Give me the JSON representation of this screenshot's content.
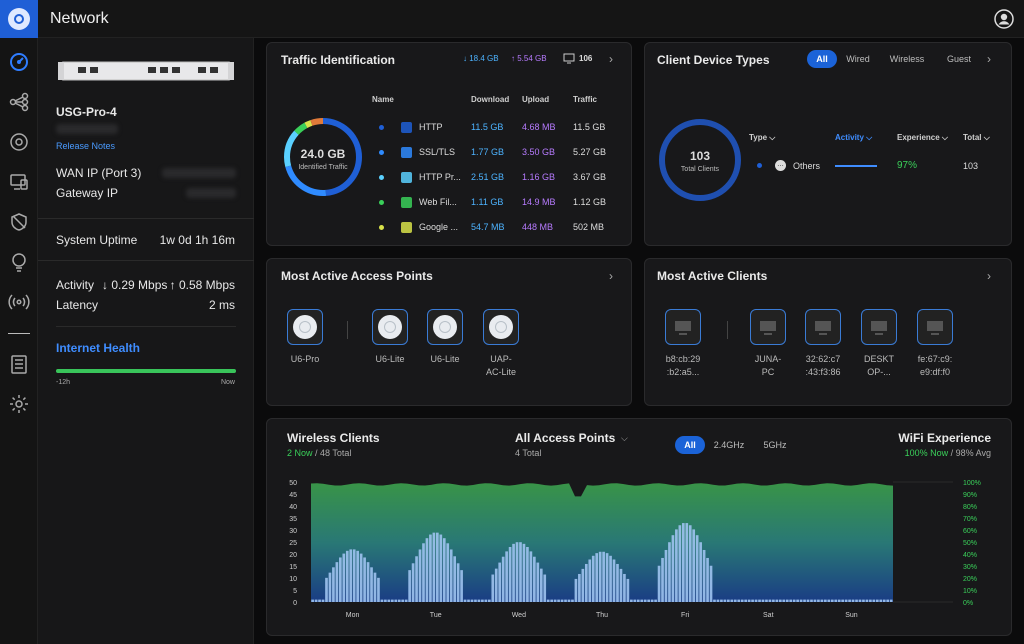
{
  "header": {
    "title": "Network"
  },
  "sidebar_nav": [
    "dashboard",
    "topology",
    "clients-devices",
    "devices",
    "security",
    "insights",
    "radios",
    "logs",
    "settings"
  ],
  "device": {
    "name": "USG-Pro-4",
    "release_notes": "Release Notes",
    "wan_label": "WAN IP (Port 3)",
    "gateway_label": "Gateway IP",
    "uptime_label": "System Uptime",
    "uptime_value": "1w 0d 1h 16m",
    "activity_label": "Activity",
    "activity_down": "↓ 0.29 Mbps",
    "activity_up": "↑ 0.58 Mbps",
    "latency_label": "Latency",
    "latency_value": "2 ms",
    "health_title": "Internet Health",
    "health_start": "-12h",
    "health_end": "Now",
    "health_fraction": 1.0
  },
  "traffic": {
    "title": "Traffic Identification",
    "down": "18.4 GB",
    "up": "5.54 GB",
    "count": "106",
    "donut_value": "24.0 GB",
    "donut_label": "Identified Traffic",
    "headers": [
      "Name",
      "Download",
      "Upload",
      "Traffic"
    ],
    "rows": [
      {
        "name": "HTTP",
        "download": "11.5 GB",
        "upload": "4.68 MB",
        "traffic": "11.5 GB",
        "color": "#1f5fd6"
      },
      {
        "name": "SSL/TLS",
        "download": "1.77 GB",
        "upload": "3.50 GB",
        "traffic": "5.27 GB",
        "color": "#2f8bff"
      },
      {
        "name": "HTTP Pr...",
        "download": "2.51 GB",
        "upload": "1.16 GB",
        "traffic": "3.67 GB",
        "color": "#5ad0ff"
      },
      {
        "name": "Web Fil...",
        "download": "1.11 GB",
        "upload": "14.9 MB",
        "traffic": "1.12 GB",
        "color": "#3ad05a"
      },
      {
        "name": "Google ...",
        "download": "54.7 MB",
        "upload": "448 MB",
        "traffic": "502 MB",
        "color": "#d8e24a"
      }
    ]
  },
  "client_types": {
    "title": "Client Device Types",
    "tabs": [
      "All",
      "Wired",
      "Wireless",
      "Guest"
    ],
    "donut_value": "103",
    "donut_label": "Total Clients",
    "headers": [
      "Type",
      "Activity",
      "Experience",
      "Total"
    ],
    "row": {
      "type": "Others",
      "experience": "97%",
      "total": "103"
    }
  },
  "access_points": {
    "title": "Most Active Access Points",
    "items": [
      {
        "label": "U6-Pro"
      },
      {
        "label": "U6-Lite"
      },
      {
        "label": "U6-Lite"
      },
      {
        "label": "UAP-\nAC-Lite"
      }
    ]
  },
  "active_clients": {
    "title": "Most Active Clients",
    "items": [
      {
        "label": "b8:cb:29\n:b2:a5..."
      },
      {
        "label": "JUNA-\nPC"
      },
      {
        "label": "32:62:c7\n:43:f3:86"
      },
      {
        "label": "DESKT\nOP-..."
      },
      {
        "label": "fe:67:c9:\ne9:df:f0"
      }
    ]
  },
  "wireless": {
    "title": "Wireless Clients",
    "now": "2 Now",
    "total": " / 48 Total",
    "ap_select": "All Access Points",
    "ap_count": "4 Total",
    "bands": [
      "All",
      "2.4GHz",
      "5GHz"
    ],
    "wifi_title": "WiFi Experience",
    "wifi_now": "100% Now",
    "wifi_avg": " / 98% Avg"
  },
  "chart_data": {
    "type": "bar",
    "title": "Wireless Clients",
    "x_labels": [
      "Mon",
      "Tue",
      "Wed",
      "Thu",
      "Fri",
      "Sat",
      "Sun"
    ],
    "y_ticks": [
      0,
      5,
      10,
      15,
      20,
      25,
      30,
      35,
      40,
      45,
      50
    ],
    "y2_ticks": [
      "0%",
      "10%",
      "20%",
      "30%",
      "40%",
      "50%",
      "60%",
      "70%",
      "80%",
      "90%",
      "100%"
    ],
    "ylim": [
      0,
      50
    ],
    "day_peaks": [
      22,
      29,
      25,
      21,
      33,
      1,
      1
    ],
    "experience_pct_approx": 98,
    "colors": {
      "bars": "#9fc3ef",
      "experience_fill": "#3a9a4a",
      "experience_grad_bottom": "#1a3f8a",
      "axis_left": "#cfcfcf",
      "axis_right": "#3ad05a"
    }
  }
}
